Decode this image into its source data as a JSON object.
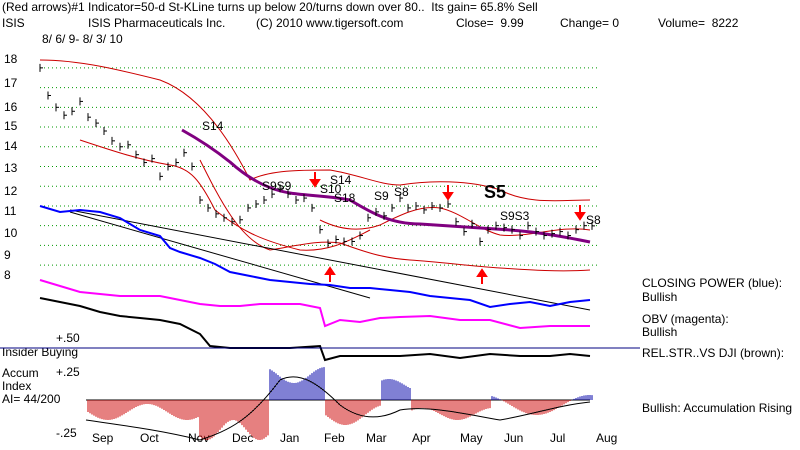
{
  "header": {
    "line1": "(Red arrows)#1 Indicator=50-d St-KLine turns up below 20/turns down over 80..  Its gain= 65.8% Sell",
    "ticker": "ISIS",
    "company": "ISIS Pharmaceuticals Inc.",
    "copyright": "(C) 2010 www.tigersoft.com",
    "close": "Close=  9.99",
    "change": "Change= 0",
    "volume": "Volume=  8222",
    "date_range": "8/ 6/ 9- 8/ 3/ 10"
  },
  "right_panel": {
    "closing_power_label": "CLOSING POWER (blue):",
    "closing_power_value": "Bullish",
    "obv_label": "OBV (magenta):",
    "obv_value": "Bullish",
    "rel_str_label": "REL.STR..VS DJI (brown):",
    "accum_text": "Bullish: Accumulation Rising"
  },
  "lower_panel": {
    "plus50": "+.50",
    "insider": "Insider Buying",
    "plus25": "+.25",
    "accum1": "Accum",
    "accum2": "Index",
    "ai": "AI= 44/200",
    "minus25": "-.25"
  },
  "signals": {
    "s14a": "S14",
    "s14b": "S14",
    "s9s9": "S9S9",
    "s10": "S10",
    "s18": "S18",
    "s9": "S9",
    "s8a": "S8",
    "s5": "S5",
    "s9s3": "S9S3",
    "s8b": "S8"
  },
  "colors": {
    "closing_power": "#0000ff",
    "obv": "#ff00ff",
    "rel_str": "#000000",
    "ma": "#800080",
    "bands": "#cc0000",
    "accum_pos": "#0000aa",
    "accum_neg": "#cc0000",
    "grid": "#009900"
  },
  "chart_data": {
    "type": "line",
    "title": "ISIS Pharmaceuticals Inc.",
    "x_tick_labels": [
      "Sep",
      "Oct",
      "Nov",
      "Dec",
      "Jan",
      "Feb",
      "Mar",
      "Apr",
      "May",
      "Jun",
      "Jul",
      "Aug"
    ],
    "y_tick_labels": [
      "18",
      "17",
      "16",
      "15",
      "14",
      "13",
      "12",
      "11",
      "10",
      "9",
      "8"
    ],
    "ylim": [
      7.5,
      18.5
    ],
    "grid": true,
    "series": [
      {
        "values": [
          18.0,
          16.6,
          16.0,
          15.6,
          15.8,
          16.3,
          15.5,
          15.2,
          14.8,
          14.3,
          14.0,
          14.1,
          13.6,
          13.2,
          13.4,
          12.5,
          13.0,
          13.2,
          13.7,
          13.0,
          11.3,
          10.9,
          10.6,
          10.4,
          10.2,
          10.3,
          10.9,
          11.1,
          11.3,
          11.6,
          11.9,
          11.6,
          11.3,
          11.4,
          10.9,
          9.8,
          9.1,
          9.3,
          9.2,
          9.2,
          9.5,
          10.4,
          10.7,
          10.5,
          10.9,
          11.4,
          10.9,
          11.0,
          10.8,
          11.0,
          10.9,
          11.1,
          10.2,
          9.7,
          10.1,
          9.2,
          9.8,
          10.0,
          9.9,
          9.8,
          9.5,
          10.0,
          9.7,
          9.5,
          9.6,
          9.7,
          9.5,
          9.8,
          10.0,
          9.99
        ]
      }
    ]
  }
}
